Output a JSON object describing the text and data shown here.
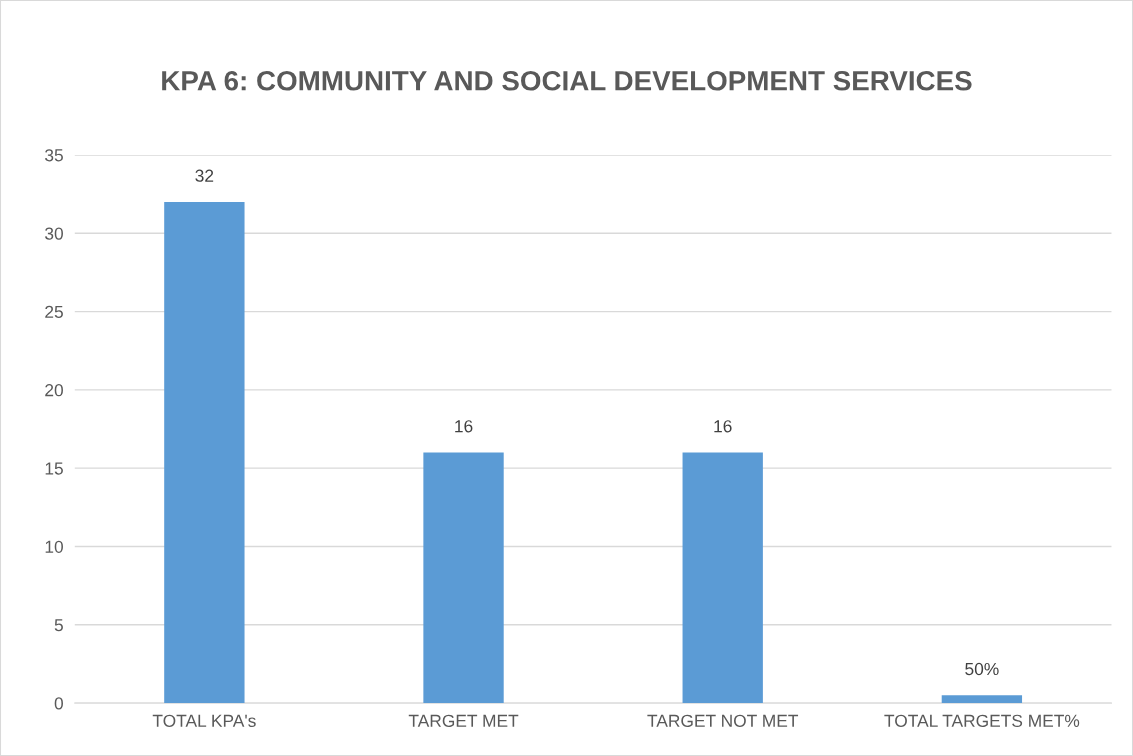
{
  "chart_data": {
    "type": "bar",
    "title": "KPA 6: COMMUNITY AND SOCIAL DEVELOPMENT SERVICES",
    "categories": [
      "TOTAL KPA's",
      "TARGET MET",
      "TARGET NOT MET",
      "TOTAL TARGETS MET%"
    ],
    "values": [
      32,
      16,
      16,
      0.5
    ],
    "value_labels": [
      "32",
      "16",
      "16",
      "50%"
    ],
    "color": "#5b9bd5",
    "ylim": [
      0,
      35
    ],
    "yticks": [
      0,
      5,
      10,
      15,
      20,
      25,
      30,
      35
    ],
    "grid": "y",
    "legend": false
  }
}
